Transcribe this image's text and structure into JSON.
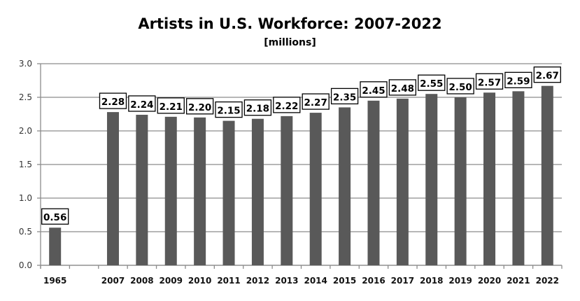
{
  "chart_data": {
    "type": "bar",
    "title": "Artists in U.S. Workforce: 2007-2022",
    "subtitle": "[millions]",
    "xlabel": "",
    "ylabel": "",
    "categories": [
      "1965",
      "",
      "2007",
      "2008",
      "2009",
      "2010",
      "2011",
      "2012",
      "2013",
      "2014",
      "2015",
      "2016",
      "2017",
      "2018",
      "2019",
      "2020",
      "2021",
      "2022"
    ],
    "values": [
      0.56,
      null,
      2.28,
      2.24,
      2.21,
      2.2,
      2.15,
      2.18,
      2.22,
      2.27,
      2.35,
      2.45,
      2.48,
      2.55,
      2.5,
      2.57,
      2.59,
      2.67
    ],
    "data_labels": [
      "0.56",
      "",
      "2.28",
      "2.24",
      "2.21",
      "2.20",
      "2.15",
      "2.18",
      "2.22",
      "2.27",
      "2.35",
      "2.45",
      "2.48",
      "2.55",
      "2.50",
      "2.57",
      "2.59",
      "2.67"
    ],
    "ylim": [
      0,
      3.0
    ],
    "yticks": [
      "0.0",
      "0.5",
      "1.0",
      "1.5",
      "2.0",
      "2.5",
      "3.0"
    ],
    "grid": true,
    "legend": "none",
    "bar_color": "#595959"
  }
}
